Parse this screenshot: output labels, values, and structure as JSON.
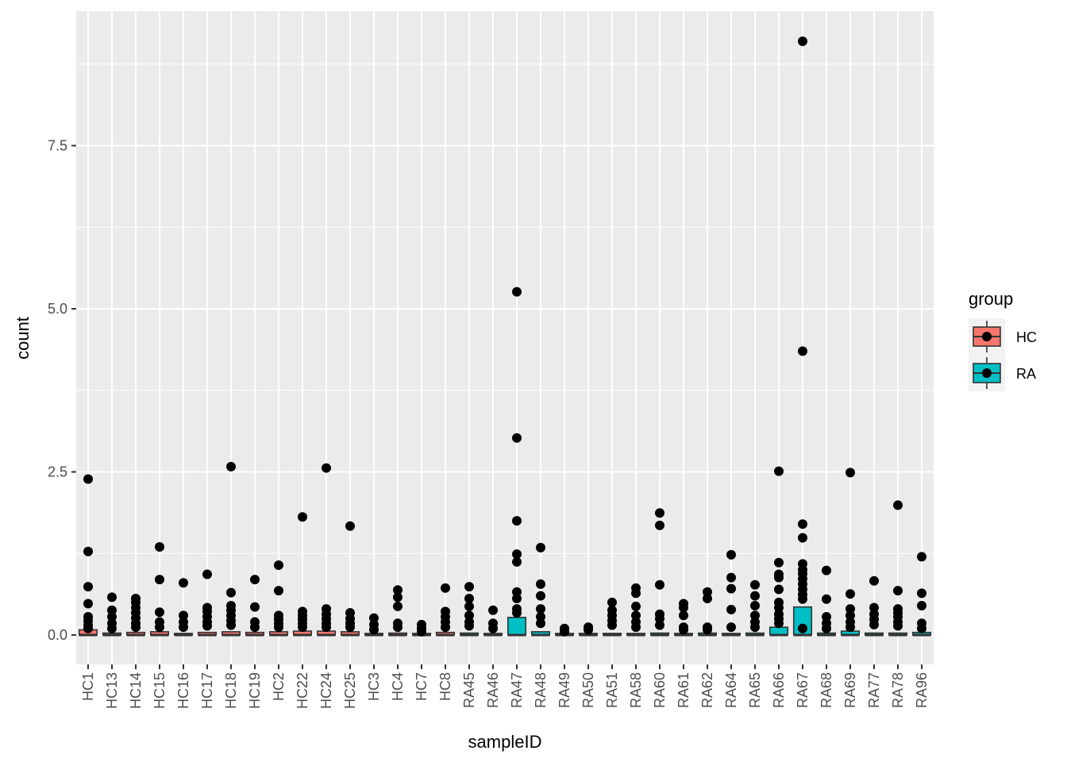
{
  "chart_data": {
    "type": "boxplot",
    "xlabel": "sampleID",
    "ylabel": "count",
    "ylim": [
      -0.1,
      9.3
    ],
    "yticks": [
      0.0,
      2.5,
      5.0,
      7.5
    ],
    "ytick_labels": [
      "0.0",
      "2.5",
      "5.0",
      "7.5"
    ],
    "grid": true,
    "legend": {
      "title": "group",
      "placement": "right",
      "entries": [
        {
          "label": "HC",
          "color": "#F8766D"
        },
        {
          "label": "RA",
          "color": "#00BFC4"
        }
      ]
    },
    "categories": [
      "HC1",
      "HC13",
      "HC14",
      "HC15",
      "HC16",
      "HC17",
      "HC18",
      "HC19",
      "HC2",
      "HC22",
      "HC24",
      "HC25",
      "HC3",
      "HC4",
      "HC7",
      "HC8",
      "RA45",
      "RA46",
      "RA47",
      "RA48",
      "RA49",
      "RA50",
      "RA51",
      "RA58",
      "RA60",
      "RA61",
      "RA62",
      "RA64",
      "RA65",
      "RA66",
      "RA67",
      "RA68",
      "RA69",
      "RA77",
      "RA78",
      "RA96"
    ],
    "groups": [
      "HC",
      "HC",
      "HC",
      "HC",
      "HC",
      "HC",
      "HC",
      "HC",
      "HC",
      "HC",
      "HC",
      "HC",
      "HC",
      "HC",
      "HC",
      "HC",
      "RA",
      "RA",
      "RA",
      "RA",
      "RA",
      "RA",
      "RA",
      "RA",
      "RA",
      "RA",
      "RA",
      "RA",
      "RA",
      "RA",
      "RA",
      "RA",
      "RA",
      "RA",
      "RA",
      "RA"
    ],
    "box_upper": [
      0.08,
      0.03,
      0.04,
      0.05,
      0.02,
      0.04,
      0.05,
      0.04,
      0.05,
      0.06,
      0.06,
      0.05,
      0.02,
      0.03,
      0.01,
      0.04,
      0.03,
      0.02,
      0.27,
      0.05,
      0.01,
      0.01,
      0.02,
      0.02,
      0.03,
      0.02,
      0.03,
      0.02,
      0.03,
      0.12,
      0.43,
      0.03,
      0.06,
      0.03,
      0.03,
      0.04
    ],
    "outliers": [
      [
        2.39,
        1.28,
        0.74,
        0.48,
        0.28,
        0.22,
        0.15,
        0.1
      ],
      [
        0.58,
        0.38,
        0.28,
        0.18,
        0.1
      ],
      [
        0.56,
        0.5,
        0.42,
        0.34,
        0.26,
        0.18,
        0.12
      ],
      [
        1.35,
        0.85,
        0.35,
        0.2,
        0.12
      ],
      [
        0.8,
        0.3,
        0.2,
        0.12
      ],
      [
        0.93,
        0.42,
        0.36,
        0.28,
        0.2,
        0.14
      ],
      [
        2.58,
        0.65,
        0.45,
        0.38,
        0.3,
        0.22,
        0.15
      ],
      [
        0.85,
        0.43,
        0.2,
        0.12
      ],
      [
        1.07,
        0.68,
        0.3,
        0.24,
        0.18,
        0.12
      ],
      [
        1.81,
        0.36,
        0.3,
        0.24,
        0.18,
        0.12
      ],
      [
        2.56,
        0.4,
        0.32,
        0.25,
        0.18,
        0.12
      ],
      [
        1.67,
        0.34,
        0.25,
        0.18,
        0.12
      ],
      [
        0.26,
        0.16,
        0.08
      ],
      [
        0.69,
        0.58,
        0.44,
        0.18,
        0.12
      ],
      [
        0.16,
        0.1,
        0.05
      ],
      [
        0.72,
        0.36,
        0.28,
        0.2,
        0.12
      ],
      [
        0.74,
        0.56,
        0.44,
        0.3,
        0.2,
        0.14
      ],
      [
        0.38,
        0.18,
        0.1
      ],
      [
        5.26,
        3.02,
        1.75,
        1.24,
        1.12,
        0.66,
        0.56,
        0.4,
        0.34
      ],
      [
        1.34,
        0.78,
        0.6,
        0.4,
        0.28,
        0.18
      ],
      [
        0.1,
        0.05
      ],
      [
        0.12,
        0.08
      ],
      [
        0.5,
        0.38,
        0.3,
        0.22,
        0.15
      ],
      [
        0.72,
        0.64,
        0.44,
        0.3,
        0.2,
        0.12
      ],
      [
        1.87,
        1.68,
        0.77,
        0.32,
        0.25,
        0.15
      ],
      [
        0.48,
        0.42,
        0.3,
        0.12,
        0.08
      ],
      [
        0.66,
        0.56,
        0.12,
        0.08
      ],
      [
        1.23,
        0.88,
        0.71,
        0.39,
        0.12
      ],
      [
        0.77,
        0.6,
        0.45,
        0.3,
        0.2,
        0.12
      ],
      [
        2.51,
        1.11,
        0.93,
        0.88,
        0.7,
        0.5,
        0.42,
        0.32,
        0.25,
        0.18
      ],
      [
        9.1,
        4.35,
        1.7,
        1.49,
        1.09,
        1.0,
        0.94,
        0.86,
        0.78,
        0.7,
        0.62,
        0.55,
        0.1
      ],
      [
        0.99,
        0.55,
        0.28,
        0.18,
        0.1
      ],
      [
        2.49,
        0.63,
        0.4,
        0.3,
        0.2,
        0.12
      ],
      [
        0.83,
        0.42,
        0.32,
        0.24,
        0.16
      ],
      [
        1.99,
        0.68,
        0.4,
        0.34,
        0.28,
        0.2,
        0.14
      ],
      [
        1.2,
        0.64,
        0.45,
        0.18,
        0.1
      ]
    ]
  }
}
